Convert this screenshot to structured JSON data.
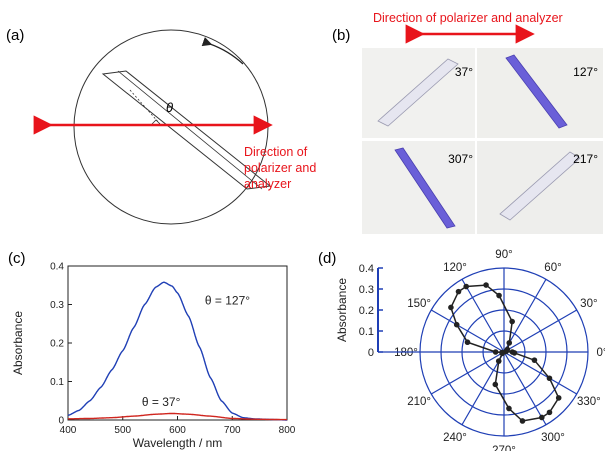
{
  "panels": {
    "a": {
      "label": "(a)",
      "theta": "θ",
      "direction_line1": "Direction of",
      "direction_line2": "polarizer and",
      "direction_line3": "analyzer",
      "colors": {
        "arrow": "#e8141b",
        "outline": "#333333"
      }
    },
    "b": {
      "label": "(b)",
      "header": "Direction of polarizer and analyzer",
      "photos": [
        {
          "angle": "37°",
          "tint": "light"
        },
        {
          "angle": "127°",
          "tint": "blue"
        },
        {
          "angle": "307°",
          "tint": "blue"
        },
        {
          "angle": "217°",
          "tint": "light"
        }
      ],
      "colors": {
        "arrow": "#e8141b",
        "blue_crystal": "#6a5fd8",
        "light_crystal": "#e6e6f0"
      }
    },
    "c": {
      "label": "(c)",
      "annotation_127": "θ = 127°",
      "annotation_37": "θ = 37°"
    },
    "d": {
      "label": "(d)",
      "angle_labels": [
        "0°",
        "30°",
        "60°",
        "90°",
        "120°",
        "150°",
        "180°",
        "210°",
        "240°",
        "270°",
        "300°",
        "330°"
      ],
      "colors": {
        "grid": "#1f3fb5",
        "data": "#222222"
      }
    }
  },
  "chart_data": [
    {
      "type": "line",
      "panel": "c",
      "xlabel": "Wavelength / nm",
      "ylabel": "Absorbance",
      "xlim": [
        400,
        800
      ],
      "ylim": [
        0,
        0.4
      ],
      "x_ticks": [
        "400",
        "500",
        "600",
        "700",
        "800"
      ],
      "y_ticks": [
        "0",
        "0.1",
        "0.2",
        "0.3",
        "0.4"
      ],
      "series": [
        {
          "color": "#1f3fb5",
          "x": [
            400,
            420,
            440,
            460,
            480,
            500,
            520,
            540,
            560,
            575,
            590,
            600,
            620,
            640,
            660,
            680,
            700,
            720,
            740,
            760,
            780,
            800
          ],
          "y": [
            0.012,
            0.025,
            0.05,
            0.085,
            0.13,
            0.18,
            0.24,
            0.3,
            0.345,
            0.358,
            0.348,
            0.33,
            0.27,
            0.19,
            0.11,
            0.05,
            0.018,
            0.006,
            0.003,
            0.002,
            0.001,
            0.0
          ]
        },
        {
          "color": "#d0261f",
          "x": [
            400,
            440,
            480,
            520,
            560,
            590,
            620,
            660,
            700,
            740,
            800
          ],
          "y": [
            0.003,
            0.004,
            0.006,
            0.01,
            0.015,
            0.017,
            0.015,
            0.01,
            0.004,
            0.002,
            0.001
          ]
        }
      ]
    },
    {
      "type": "scatter",
      "panel": "d",
      "subtype": "polar",
      "ylabel": "Absorbance",
      "rlim": [
        0,
        0.4
      ],
      "r_ticks": [
        "0",
        "0.1",
        "0.2",
        "0.3",
        "0.4"
      ],
      "points": [
        {
          "theta": 0,
          "r": 0.04
        },
        {
          "theta": 15,
          "r": 0.01
        },
        {
          "theta": 37,
          "r": 0.02
        },
        {
          "theta": 60,
          "r": 0.05
        },
        {
          "theta": 75,
          "r": 0.15
        },
        {
          "theta": 95,
          "r": 0.27
        },
        {
          "theta": 105,
          "r": 0.33
        },
        {
          "theta": 120,
          "r": 0.36
        },
        {
          "theta": 127,
          "r": 0.36
        },
        {
          "theta": 140,
          "r": 0.33
        },
        {
          "theta": 150,
          "r": 0.26
        },
        {
          "theta": 165,
          "r": 0.18
        },
        {
          "theta": 180,
          "r": 0.04
        },
        {
          "theta": 195,
          "r": 0.01
        },
        {
          "theta": 217,
          "r": 0.01
        },
        {
          "theta": 240,
          "r": 0.05
        },
        {
          "theta": 255,
          "r": 0.16
        },
        {
          "theta": 275,
          "r": 0.27
        },
        {
          "theta": 285,
          "r": 0.34
        },
        {
          "theta": 300,
          "r": 0.36
        },
        {
          "theta": 307,
          "r": 0.36
        },
        {
          "theta": 320,
          "r": 0.34
        },
        {
          "theta": 330,
          "r": 0.25
        },
        {
          "theta": 345,
          "r": 0.15
        },
        {
          "theta": 355,
          "r": 0.05
        }
      ]
    }
  ]
}
